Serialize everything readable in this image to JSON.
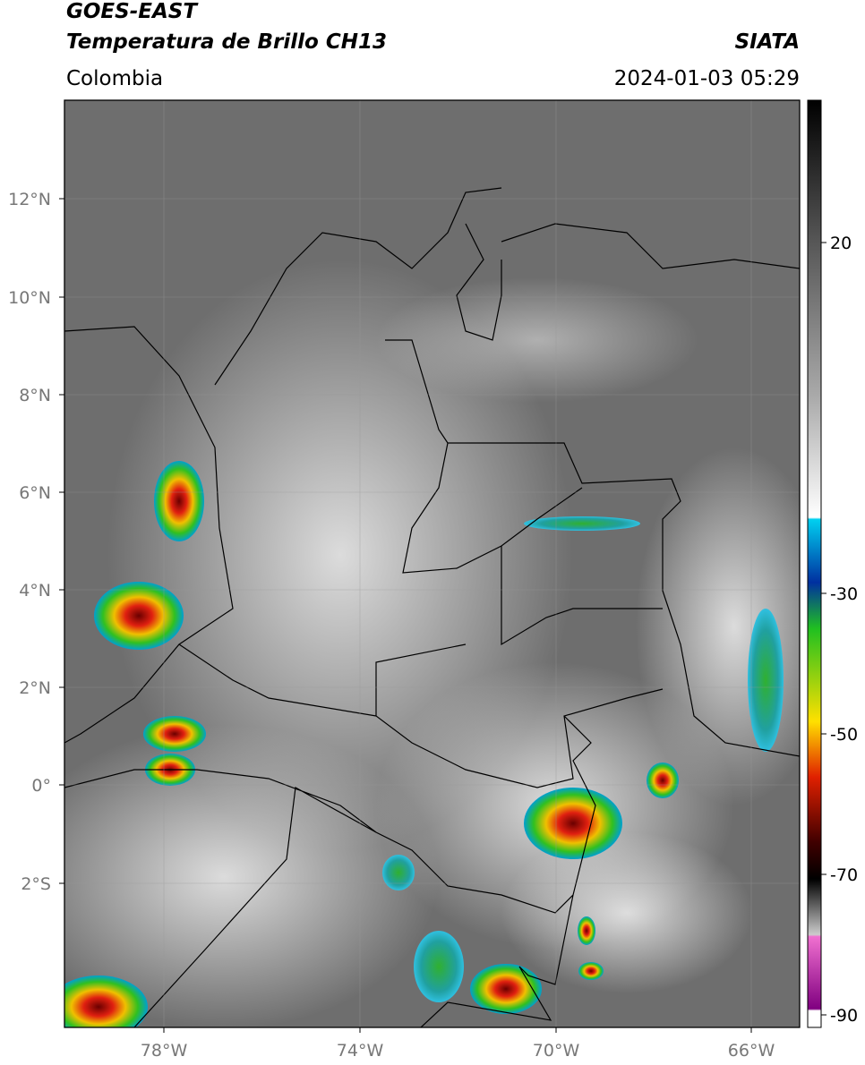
{
  "header": {
    "title": "GOES-EAST",
    "subtitle": "Temperatura de Brillo CH13",
    "source": "SIATA",
    "region": "Colombia",
    "timestamp": "2024-01-03 05:29"
  },
  "map": {
    "lat_ticks": [
      "12°N",
      "10°N",
      "8°N",
      "6°N",
      "4°N",
      "2°N",
      "0°",
      "2°S"
    ],
    "lon_ticks": [
      "78°W",
      "74°W",
      "70°W",
      "66°W"
    ]
  },
  "colorbar": {
    "ticks": [
      "20",
      "-30",
      "-50",
      "-70",
      "-90"
    ]
  }
}
